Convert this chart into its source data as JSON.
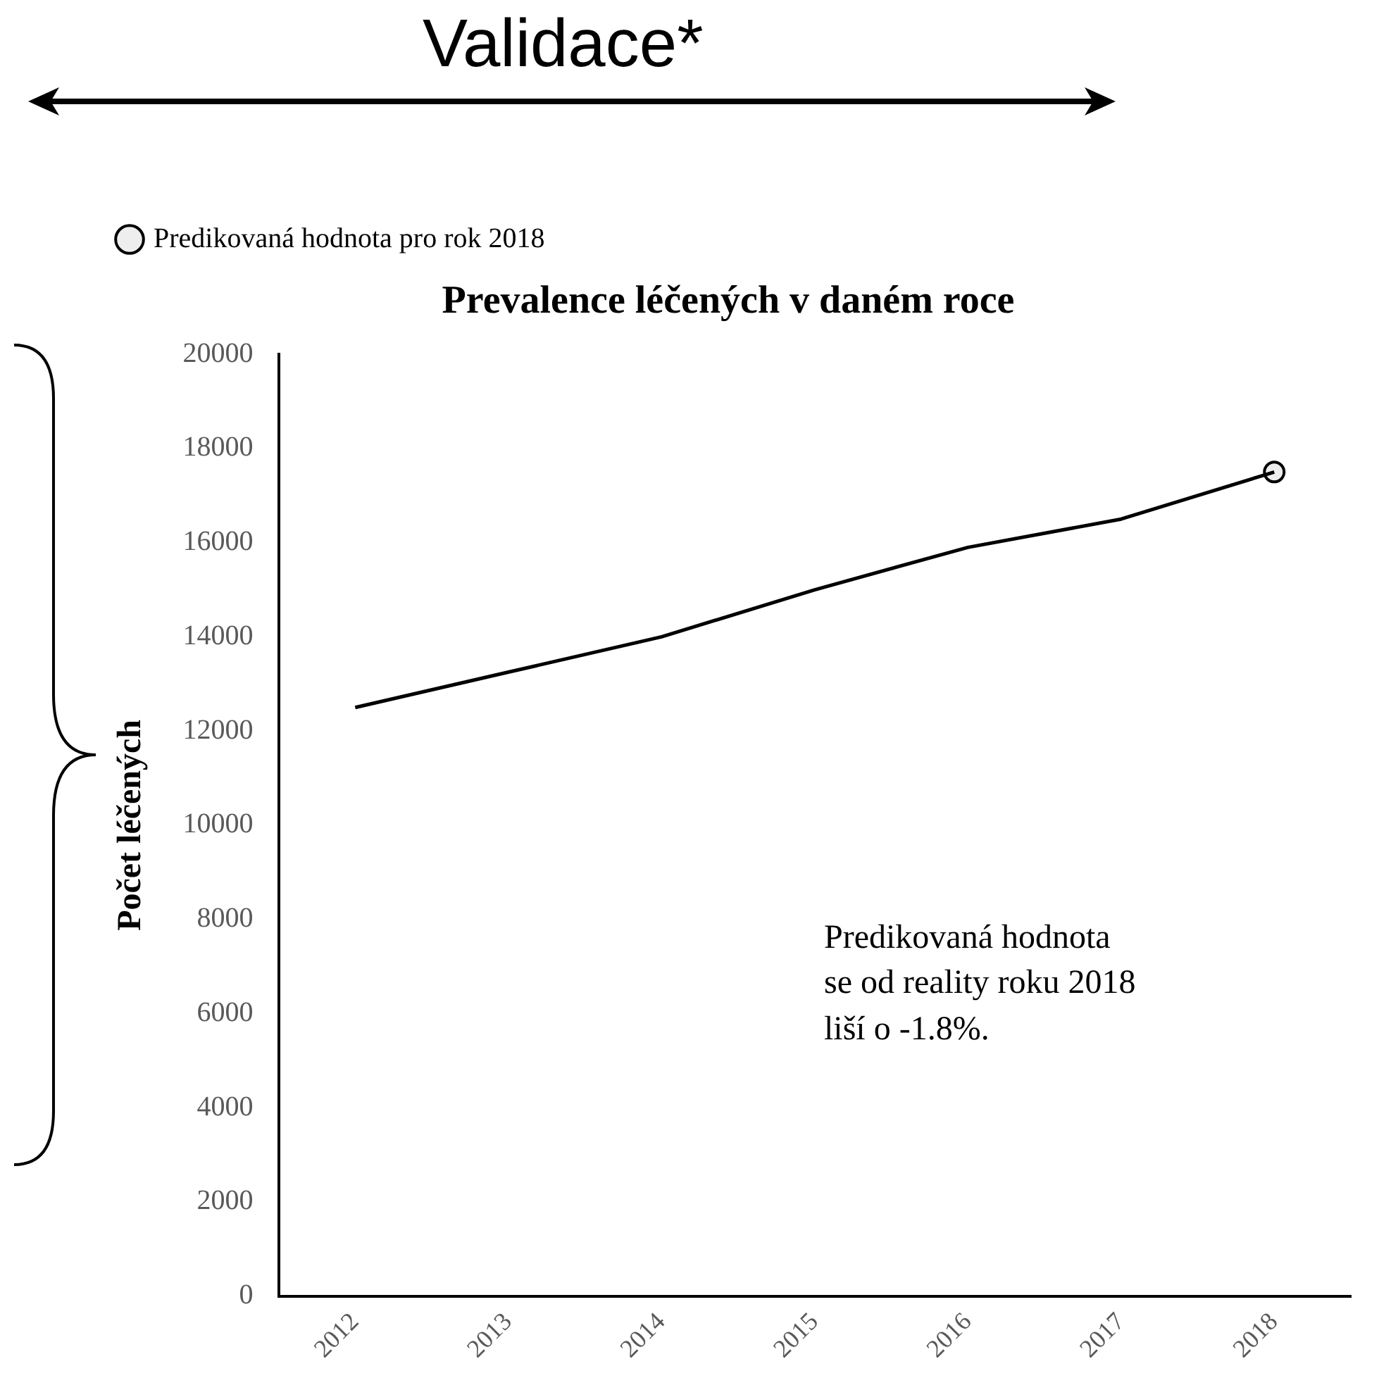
{
  "chart_data": {
    "type": "line",
    "title": "Prevalence léčených v daném roce",
    "ylabel": "Počet léčených",
    "categories": [
      "2012",
      "2013",
      "2014",
      "2015",
      "2016",
      "2017",
      "2018"
    ],
    "series": [
      {
        "color": "#000000",
        "values": [
          12500,
          13250,
          14000,
          15000,
          15900,
          16500,
          17500
        ],
        "marker": "none"
      },
      {
        "type": "scatter",
        "name": "Predikovaná hodnota pro rok 2018",
        "color": "#eeeeee",
        "marker": "circle",
        "values": [
          null,
          null,
          null,
          null,
          null,
          null,
          17500
        ]
      }
    ],
    "ylim": [
      0,
      20000
    ],
    "yticks": [
      0,
      2000,
      4000,
      6000,
      8000,
      10000,
      12000,
      14000,
      16000,
      18000,
      20000
    ],
    "grid": false,
    "legend": "top",
    "annotations": [
      "Validace*",
      "Predikovaná hodnota\nse od reality roku 2018\nliší o -1.8%."
    ]
  }
}
